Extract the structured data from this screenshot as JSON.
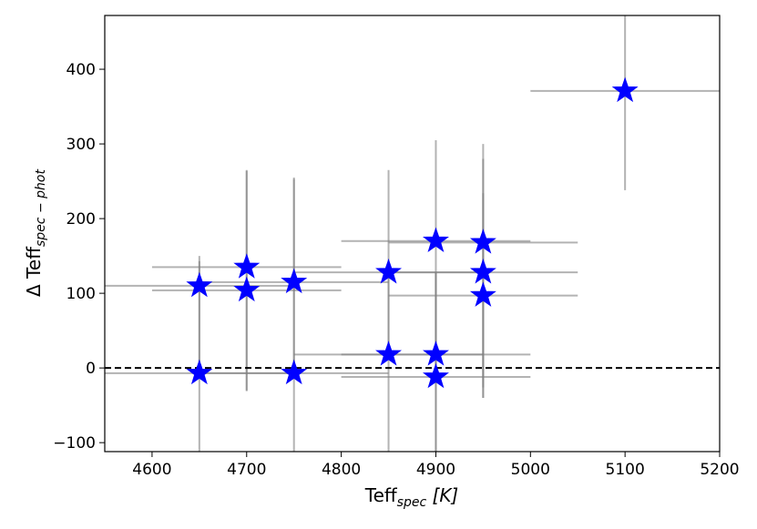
{
  "chart_data": {
    "type": "scatter",
    "xlabel": {
      "base": "Teff",
      "sub": "spec",
      "tail": " [K]"
    },
    "ylabel": {
      "prefix": "Δ Teff",
      "sub": "spec − phot"
    },
    "xlim": [
      4550,
      5200
    ],
    "ylim": [
      -112,
      472
    ],
    "xticks": [
      4600,
      4700,
      4800,
      4900,
      5000,
      5100,
      5200
    ],
    "yticks": [
      -100,
      0,
      100,
      200,
      300,
      400
    ],
    "reference_line": {
      "y": 0,
      "style": "dashed",
      "color": "#000000"
    },
    "grid": false,
    "marker": "star",
    "marker_color": "#0000ff",
    "errorbar_color": "#808080",
    "points": [
      {
        "x": 4650,
        "y": 110,
        "xerr": 100,
        "yerr_low": 110,
        "yerr_high": 40
      },
      {
        "x": 4650,
        "y": -7,
        "xerr": 100,
        "yerr_low": 110,
        "yerr_high": 150
      },
      {
        "x": 4700,
        "y": 135,
        "xerr": 100,
        "yerr_low": 165,
        "yerr_high": 130
      },
      {
        "x": 4700,
        "y": 104,
        "xerr": 100,
        "yerr_low": 135,
        "yerr_high": 160
      },
      {
        "x": 4750,
        "y": 115,
        "xerr": 100,
        "yerr_low": 125,
        "yerr_high": 140
      },
      {
        "x": 4750,
        "y": -7,
        "xerr": 100,
        "yerr_low": 110,
        "yerr_high": 260
      },
      {
        "x": 4850,
        "y": 128,
        "xerr": 100,
        "yerr_low": 110,
        "yerr_high": 137
      },
      {
        "x": 4850,
        "y": 18,
        "xerr": 100,
        "yerr_low": 130,
        "yerr_high": 110
      },
      {
        "x": 4900,
        "y": 170,
        "xerr": 100,
        "yerr_low": 182,
        "yerr_high": 135
      },
      {
        "x": 4900,
        "y": 18,
        "xerr": 100,
        "yerr_low": 130,
        "yerr_high": 110
      },
      {
        "x": 4900,
        "y": -12,
        "xerr": 100,
        "yerr_low": 100,
        "yerr_high": 140
      },
      {
        "x": 4950,
        "y": 168,
        "xerr": 100,
        "yerr_low": 194,
        "yerr_high": 132
      },
      {
        "x": 4950,
        "y": 128,
        "xerr": 100,
        "yerr_low": 168,
        "yerr_high": 152
      },
      {
        "x": 4950,
        "y": 97,
        "xerr": 100,
        "yerr_low": 137,
        "yerr_high": 137
      },
      {
        "x": 5100,
        "y": 371,
        "xerr": 100,
        "yerr_low": 133,
        "yerr_high": 110
      }
    ]
  }
}
